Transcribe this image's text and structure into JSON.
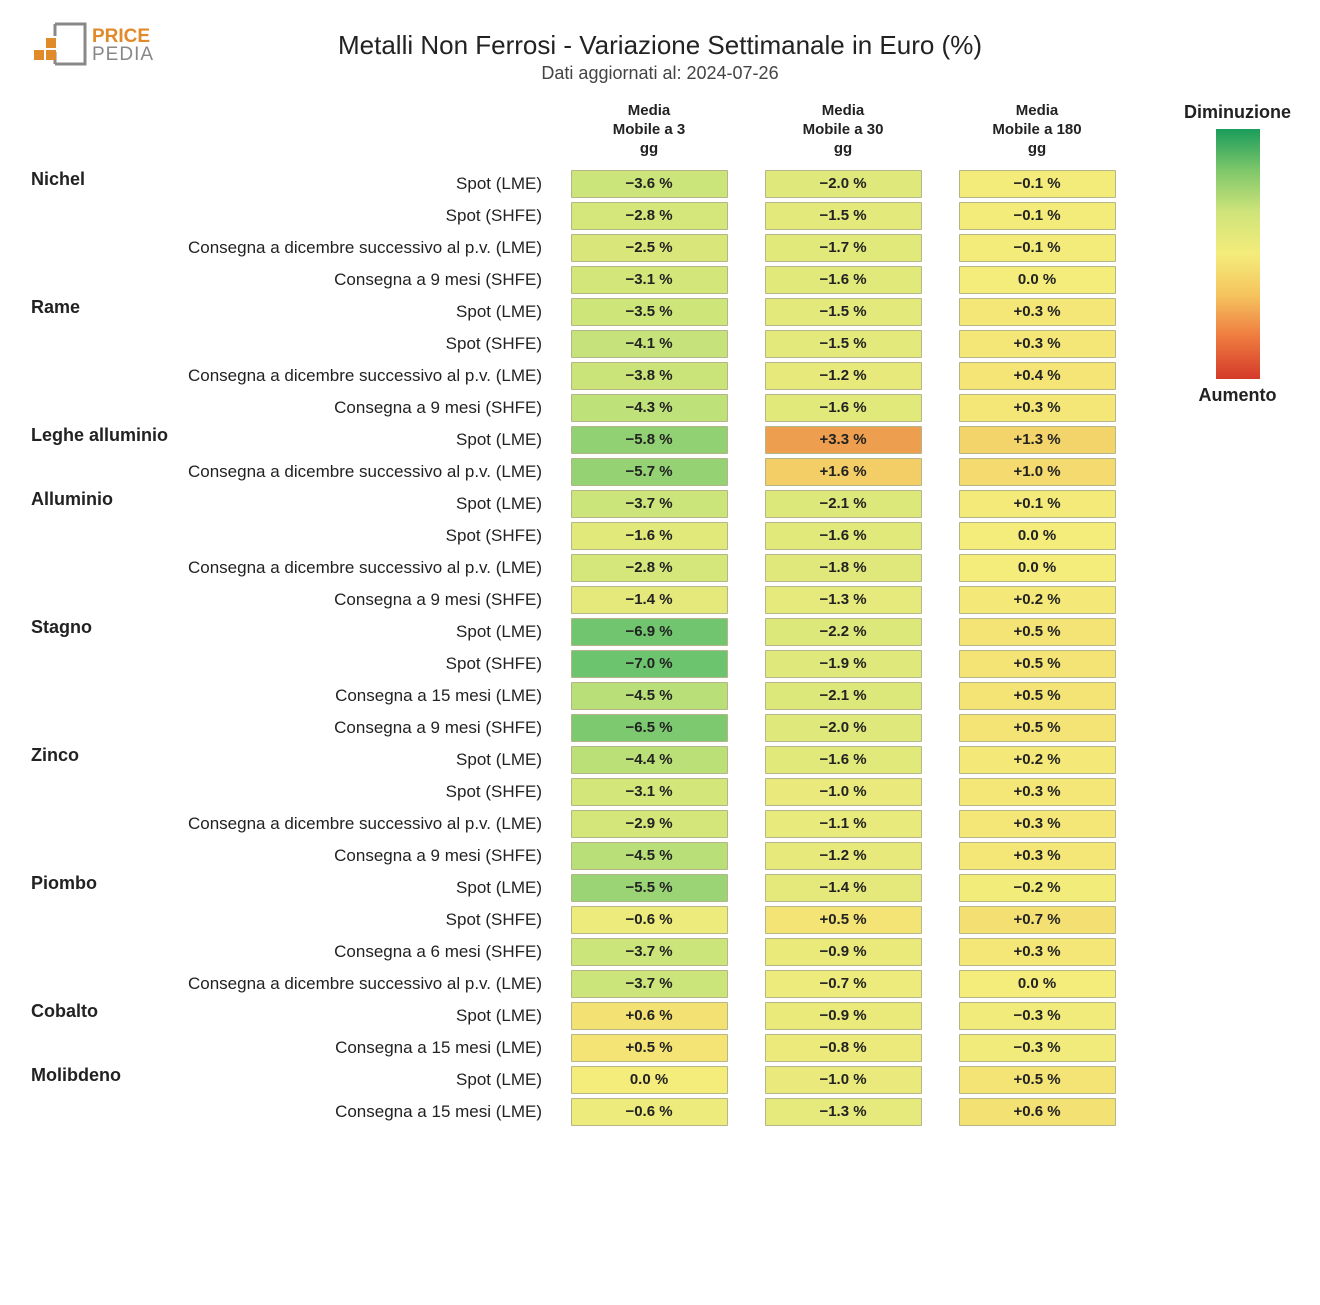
{
  "logo": {
    "word1": "PRICE",
    "word2": "PEDIA",
    "orange": "#e08a2a",
    "gray": "#888888"
  },
  "title": "Metalli Non Ferrosi - Variazione Settimanale in Euro (%)",
  "subtitle": "Dati aggiornati al: 2024-07-26",
  "columns": [
    "Media\nMobile a 3\ngg",
    "Media\nMobile a 30\ngg",
    "Media\nMobile a 180\ngg"
  ],
  "legend": {
    "top_label": "Diminuzione",
    "bottom_label": "Aumento",
    "gradient_stops": [
      "#1a9c5b",
      "#7fc76a",
      "#cfe47a",
      "#f4ec7b",
      "#f5c35e",
      "#ee7a3f",
      "#d43a2a"
    ]
  },
  "heatmap": {
    "cell_border_color": "#b5b58a",
    "text_color": "#222222",
    "scale_min": -8.0,
    "scale_mid": 0.0,
    "scale_max": 4.0,
    "color_min": "#4fb96a",
    "color_mid_low": "#c8e47a",
    "color_mid": "#f4ec7b",
    "color_mid_high": "#f3c762",
    "color_max": "#e98a45"
  },
  "groups": [
    {
      "name": "Nichel",
      "rows": [
        {
          "label": "Spot (LME)",
          "values": [
            -3.6,
            -2.0,
            -0.1
          ]
        },
        {
          "label": "Spot (SHFE)",
          "values": [
            -2.8,
            -1.5,
            -0.1
          ]
        },
        {
          "label": "Consegna a dicembre successivo al p.v. (LME)",
          "values": [
            -2.5,
            -1.7,
            -0.1
          ]
        },
        {
          "label": "Consegna a 9 mesi (SHFE)",
          "values": [
            -3.1,
            -1.6,
            0.0
          ]
        }
      ]
    },
    {
      "name": "Rame",
      "rows": [
        {
          "label": "Spot (LME)",
          "values": [
            -3.5,
            -1.5,
            0.3
          ]
        },
        {
          "label": "Spot (SHFE)",
          "values": [
            -4.1,
            -1.5,
            0.3
          ]
        },
        {
          "label": "Consegna a dicembre successivo al p.v. (LME)",
          "values": [
            -3.8,
            -1.2,
            0.4
          ]
        },
        {
          "label": "Consegna a 9 mesi (SHFE)",
          "values": [
            -4.3,
            -1.6,
            0.3
          ]
        }
      ]
    },
    {
      "name": "Leghe alluminio",
      "rows": [
        {
          "label": "Spot (LME)",
          "values": [
            -5.8,
            3.3,
            1.3
          ]
        },
        {
          "label": "Consegna a dicembre successivo al p.v. (LME)",
          "values": [
            -5.7,
            1.6,
            1.0
          ]
        }
      ]
    },
    {
      "name": "Alluminio",
      "rows": [
        {
          "label": "Spot (LME)",
          "values": [
            -3.7,
            -2.1,
            0.1
          ]
        },
        {
          "label": "Spot (SHFE)",
          "values": [
            -1.6,
            -1.6,
            0.0
          ]
        },
        {
          "label": "Consegna a dicembre successivo al p.v. (LME)",
          "values": [
            -2.8,
            -1.8,
            0.0
          ]
        },
        {
          "label": "Consegna a 9 mesi (SHFE)",
          "values": [
            -1.4,
            -1.3,
            0.2
          ]
        }
      ]
    },
    {
      "name": "Stagno",
      "rows": [
        {
          "label": "Spot (LME)",
          "values": [
            -6.9,
            -2.2,
            0.5
          ]
        },
        {
          "label": "Spot (SHFE)",
          "values": [
            -7.0,
            -1.9,
            0.5
          ]
        },
        {
          "label": "Consegna a 15 mesi (LME)",
          "values": [
            -4.5,
            -2.1,
            0.5
          ]
        },
        {
          "label": "Consegna a 9 mesi (SHFE)",
          "values": [
            -6.5,
            -2.0,
            0.5
          ]
        }
      ]
    },
    {
      "name": "Zinco",
      "rows": [
        {
          "label": "Spot (LME)",
          "values": [
            -4.4,
            -1.6,
            0.2
          ]
        },
        {
          "label": "Spot (SHFE)",
          "values": [
            -3.1,
            -1.0,
            0.3
          ]
        },
        {
          "label": "Consegna a dicembre successivo al p.v. (LME)",
          "values": [
            -2.9,
            -1.1,
            0.3
          ]
        },
        {
          "label": "Consegna a 9 mesi (SHFE)",
          "values": [
            -4.5,
            -1.2,
            0.3
          ]
        }
      ]
    },
    {
      "name": "Piombo",
      "rows": [
        {
          "label": "Spot (LME)",
          "values": [
            -5.5,
            -1.4,
            -0.2
          ]
        },
        {
          "label": "Spot (SHFE)",
          "values": [
            -0.6,
            0.5,
            0.7
          ]
        },
        {
          "label": "Consegna a 6 mesi (SHFE)",
          "values": [
            -3.7,
            -0.9,
            0.3
          ]
        },
        {
          "label": "Consegna a dicembre successivo al p.v. (LME)",
          "values": [
            -3.7,
            -0.7,
            0.0
          ]
        }
      ]
    },
    {
      "name": "Cobalto",
      "rows": [
        {
          "label": "Spot (LME)",
          "values": [
            0.6,
            -0.9,
            -0.3
          ]
        },
        {
          "label": "Consegna a 15 mesi (LME)",
          "values": [
            0.5,
            -0.8,
            -0.3
          ]
        }
      ]
    },
    {
      "name": "Molibdeno",
      "rows": [
        {
          "label": "Spot (LME)",
          "values": [
            0.0,
            -1.0,
            0.5
          ]
        },
        {
          "label": "Consegna a 15 mesi (LME)",
          "values": [
            -0.6,
            -1.3,
            0.6
          ]
        }
      ]
    }
  ]
}
